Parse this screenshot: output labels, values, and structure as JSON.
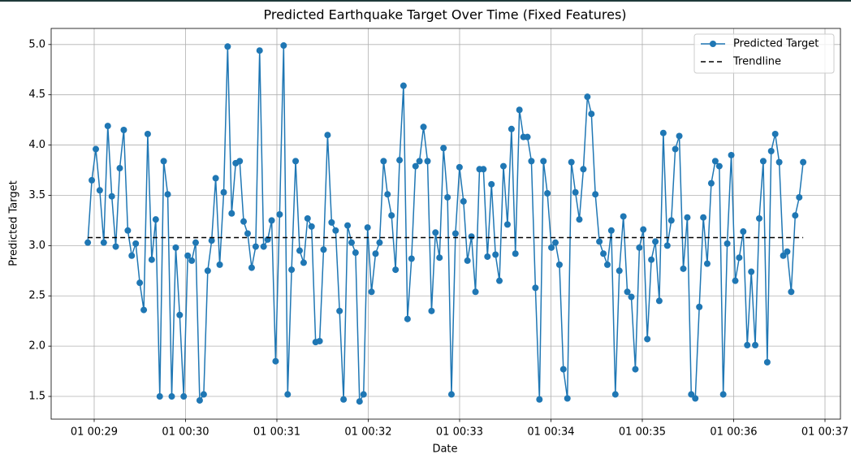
{
  "chart_data": {
    "type": "line",
    "title": "Predicted Earthquake Target Over Time (Fixed Features)",
    "x_label": "Date",
    "y_label": "Predicted Target",
    "xlim": [
      28.529,
      37.169
    ],
    "ylim": [
      1.274,
      5.16
    ],
    "xticks": [
      {
        "value": 29,
        "label": "01 00:29"
      },
      {
        "value": 30,
        "label": "01 00:30"
      },
      {
        "value": 31,
        "label": "01 00:31"
      },
      {
        "value": 32,
        "label": "01 00:32"
      },
      {
        "value": 33,
        "label": "01 00:33"
      },
      {
        "value": 34,
        "label": "01 00:34"
      },
      {
        "value": 35,
        "label": "01 00:35"
      },
      {
        "value": 36,
        "label": "01 00:36"
      },
      {
        "value": 37,
        "label": "01 00:37"
      }
    ],
    "yticks": [
      1.5,
      {
        "value": 2,
        "label": "2.0"
      },
      2.5,
      {
        "value": 3,
        "label": "3.0"
      },
      3.5,
      {
        "value": 4,
        "label": "4.0"
      },
      4.5,
      {
        "value": 5,
        "label": "5.0"
      }
    ],
    "grid": true,
    "legend": "upper right",
    "series": [
      {
        "name": "Predicted Target",
        "color": "#1f77b4",
        "marker": "o",
        "linestyle": "solid",
        "x": [
          28.93,
          28.974,
          29.018,
          29.061,
          29.105,
          29.149,
          29.193,
          29.236,
          29.28,
          29.324,
          29.368,
          29.411,
          29.455,
          29.499,
          29.543,
          29.586,
          29.63,
          29.674,
          29.718,
          29.761,
          29.805,
          29.849,
          29.893,
          29.936,
          29.98,
          30.024,
          30.068,
          30.111,
          30.155,
          30.199,
          30.243,
          30.286,
          30.33,
          30.374,
          30.418,
          30.461,
          30.505,
          30.549,
          30.593,
          30.636,
          30.68,
          30.724,
          30.768,
          30.811,
          30.855,
          30.899,
          30.943,
          30.986,
          31.03,
          31.074,
          31.118,
          31.161,
          31.205,
          31.249,
          31.293,
          31.336,
          31.38,
          31.424,
          31.468,
          31.511,
          31.555,
          31.599,
          31.643,
          31.686,
          31.73,
          31.774,
          31.818,
          31.861,
          31.905,
          31.949,
          31.993,
          32.036,
          32.08,
          32.124,
          32.168,
          32.211,
          32.255,
          32.299,
          32.343,
          32.386,
          32.43,
          32.474,
          32.518,
          32.561,
          32.605,
          32.649,
          32.693,
          32.736,
          32.78,
          32.824,
          32.868,
          32.911,
          32.955,
          32.999,
          33.043,
          33.086,
          33.13,
          33.174,
          33.218,
          33.261,
          33.305,
          33.349,
          33.393,
          33.436,
          33.48,
          33.524,
          33.568,
          33.611,
          33.655,
          33.699,
          33.743,
          33.786,
          33.83,
          33.874,
          33.918,
          33.961,
          34.005,
          34.049,
          34.093,
          34.136,
          34.18,
          34.224,
          34.268,
          34.311,
          34.355,
          34.399,
          34.443,
          34.486,
          34.53,
          34.574,
          34.618,
          34.661,
          34.705,
          34.749,
          34.793,
          34.836,
          34.88,
          34.924,
          34.968,
          35.011,
          35.055,
          35.099,
          35.143,
          35.186,
          35.23,
          35.274,
          35.318,
          35.361,
          35.405,
          35.449,
          35.493,
          35.536,
          35.58,
          35.624,
          35.668,
          35.711,
          35.755,
          35.799,
          35.843,
          35.886,
          35.93,
          35.974,
          36.018,
          36.061,
          36.105,
          36.149,
          36.193,
          36.236,
          36.28,
          36.324,
          36.368,
          36.411,
          36.455,
          36.499,
          36.543,
          36.586,
          36.63,
          36.674,
          36.718,
          36.761
        ],
        "values": [
          3.03,
          3.65,
          3.96,
          3.55,
          3.03,
          4.19,
          3.49,
          2.99,
          3.77,
          4.15,
          3.15,
          2.9,
          3.02,
          2.63,
          2.36,
          4.11,
          2.86,
          3.26,
          1.5,
          3.84,
          3.51,
          1.5,
          2.98,
          2.31,
          1.5,
          2.9,
          2.85,
          3.03,
          1.46,
          1.52,
          2.75,
          3.05,
          3.67,
          2.81,
          3.53,
          4.98,
          3.32,
          3.82,
          3.84,
          3.24,
          3.12,
          2.78,
          2.99,
          4.94,
          2.99,
          3.06,
          3.25,
          1.85,
          3.31,
          4.99,
          1.52,
          2.76,
          3.84,
          2.95,
          2.83,
          3.27,
          3.19,
          2.04,
          2.05,
          2.96,
          4.1,
          3.23,
          3.15,
          2.35,
          1.47,
          3.2,
          3.03,
          2.93,
          1.45,
          1.52,
          3.18,
          2.54,
          2.92,
          3.03,
          3.84,
          3.51,
          3.3,
          2.76,
          3.85,
          4.59,
          2.27,
          2.87,
          3.79,
          3.84,
          4.18,
          3.84,
          2.35,
          3.13,
          2.88,
          3.97,
          3.48,
          1.52,
          3.12,
          3.78,
          3.44,
          2.85,
          3.09,
          2.54,
          3.76,
          3.76,
          2.89,
          3.61,
          2.91,
          2.65,
          3.79,
          3.21,
          4.16,
          2.92,
          4.35,
          4.08,
          4.08,
          3.84,
          2.58,
          1.47,
          3.84,
          3.52,
          2.98,
          3.03,
          2.81,
          1.77,
          1.48,
          3.83,
          3.53,
          3.26,
          3.76,
          4.48,
          4.31,
          3.51,
          3.04,
          2.92,
          2.81,
          3.15,
          1.52,
          2.75,
          3.29,
          2.54,
          2.49,
          1.77,
          2.98,
          3.16,
          2.07,
          2.86,
          3.04,
          2.45,
          4.12,
          3.0,
          3.25,
          3.96,
          4.09,
          2.77,
          3.28,
          1.52,
          1.48,
          2.39,
          3.28,
          2.82,
          3.62,
          3.84,
          3.79,
          1.52,
          3.02,
          3.9,
          2.65,
          2.88,
          3.14,
          2.01,
          2.74,
          2.01,
          3.27,
          3.84,
          1.84,
          3.94,
          4.11,
          3.83,
          2.9,
          2.94,
          2.54,
          3.3,
          3.48,
          3.83
        ]
      },
      {
        "name": "Trendline",
        "color": "#000000",
        "linestyle": "dashed",
        "x": [
          28.93,
          36.761
        ],
        "values": [
          3.08,
          3.08
        ]
      }
    ]
  }
}
